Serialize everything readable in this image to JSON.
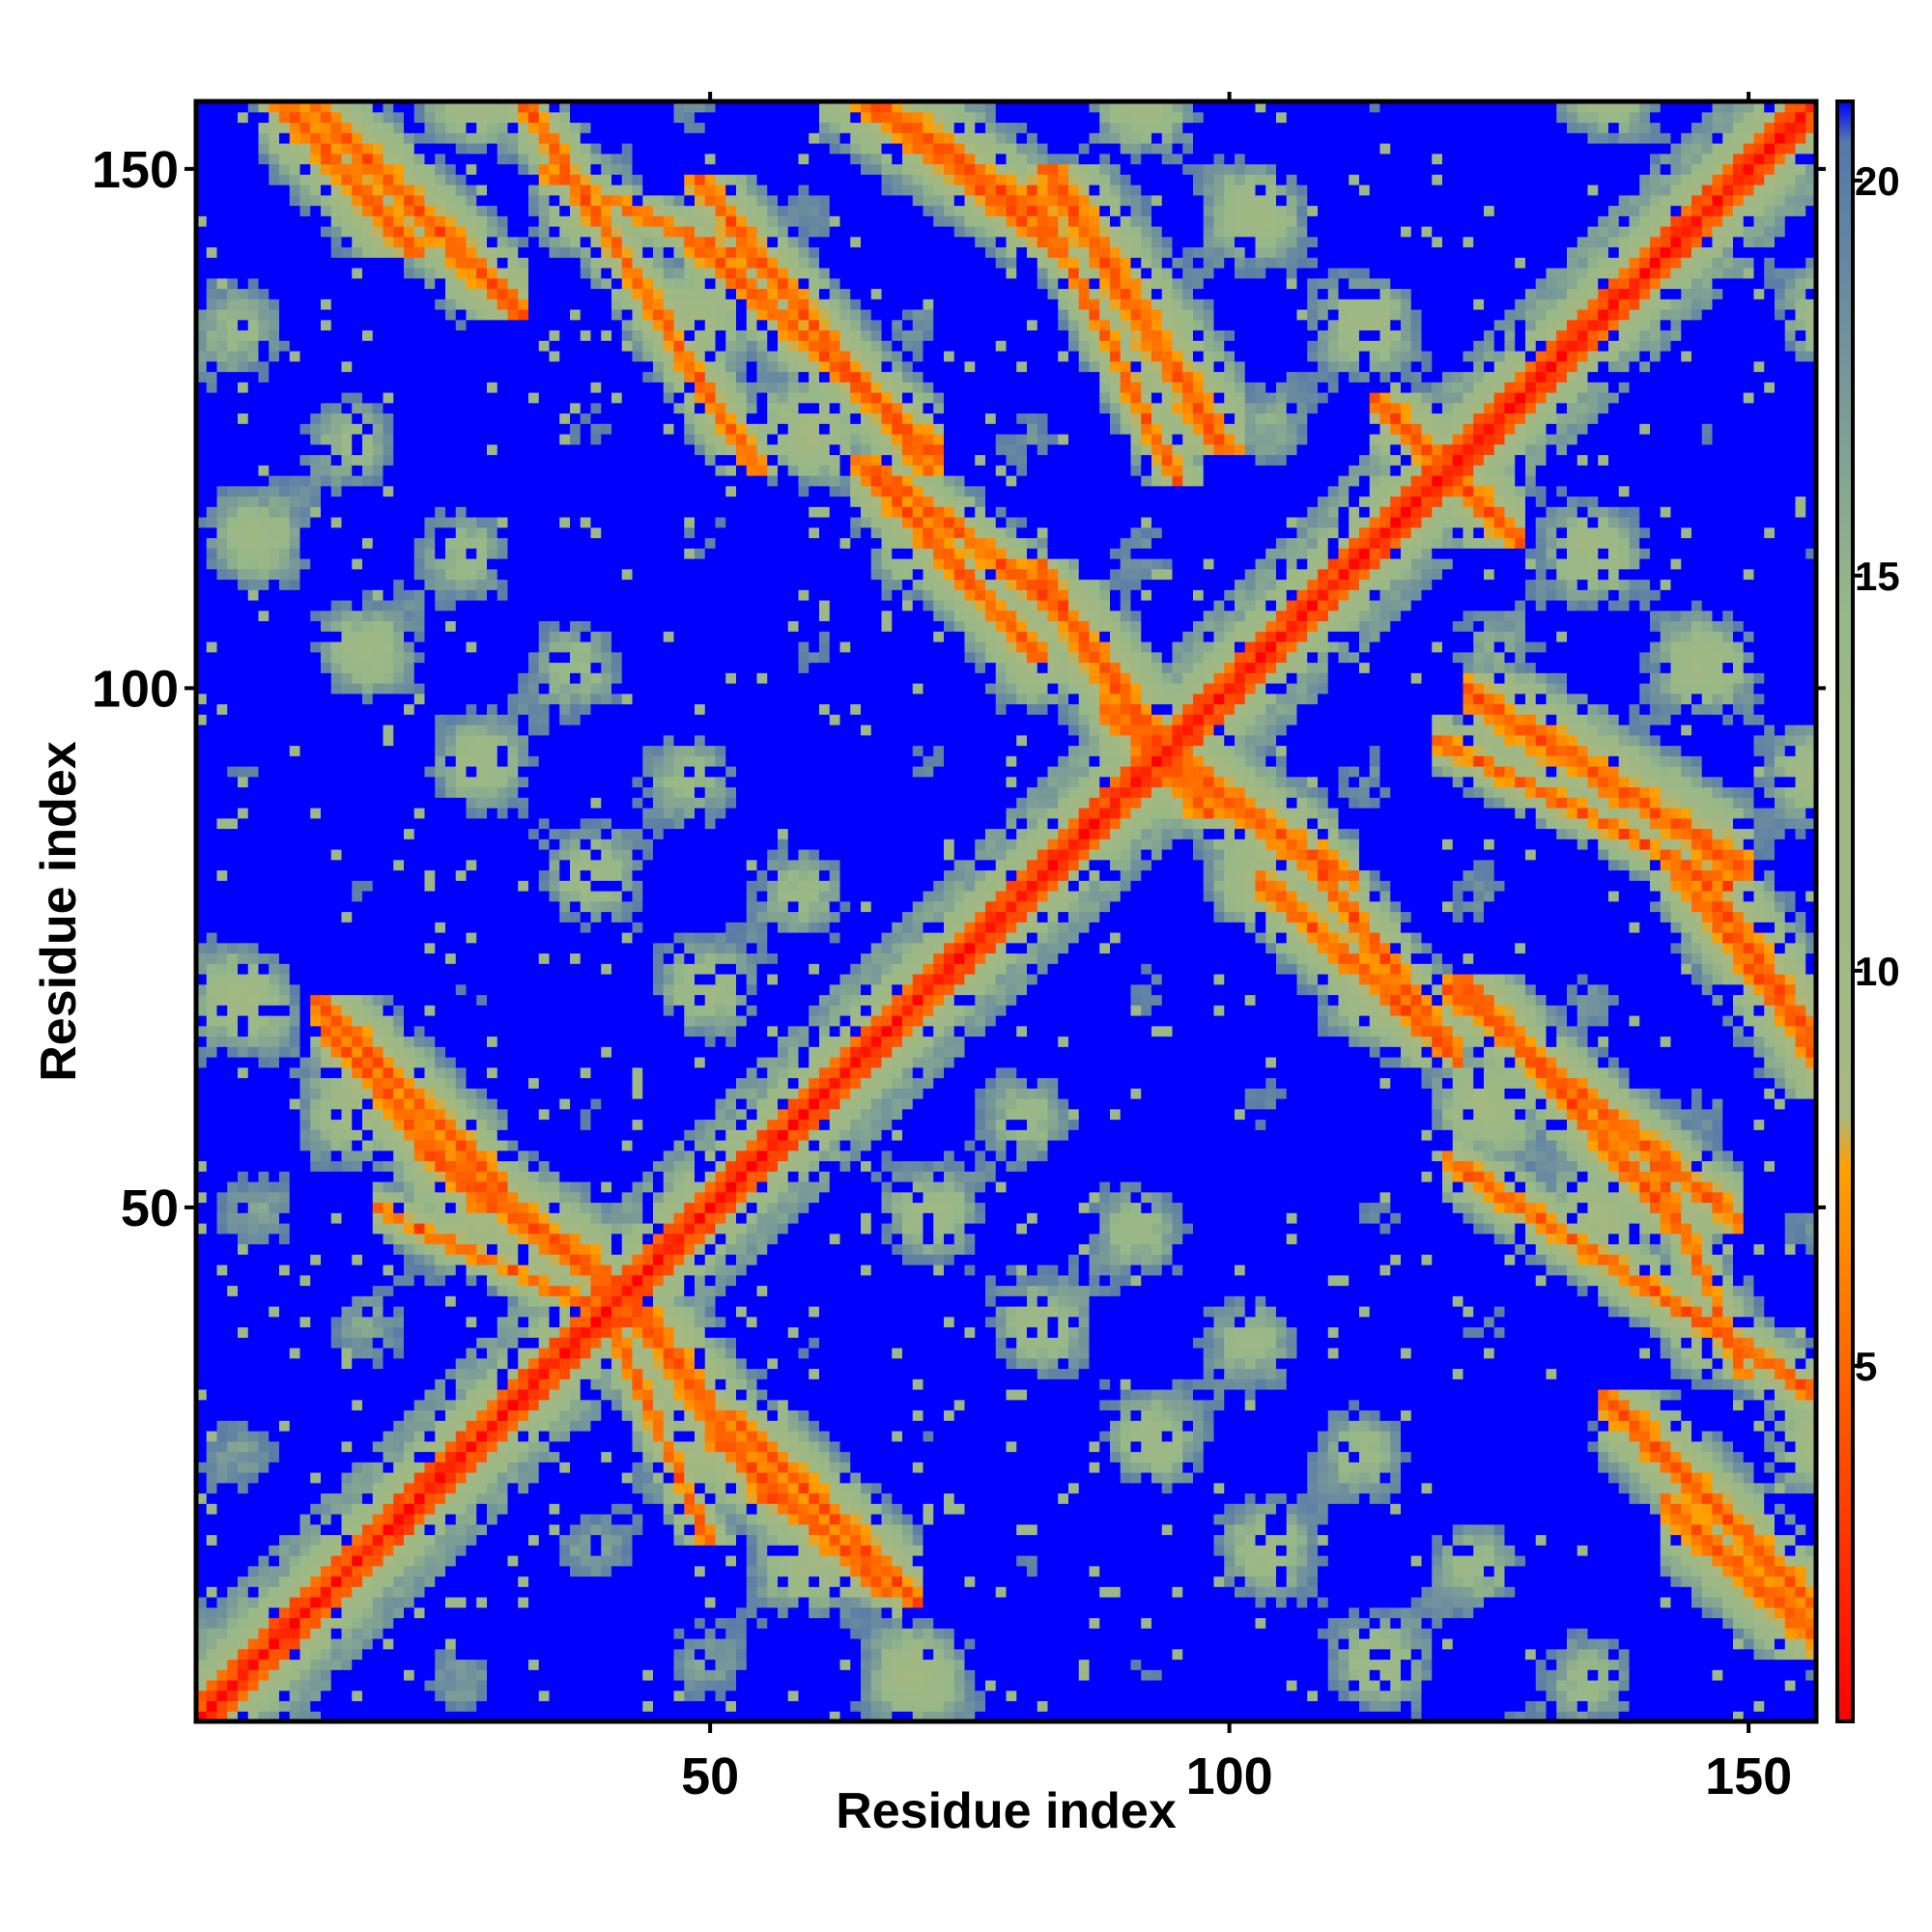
{
  "chart_data": {
    "type": "heatmap",
    "title": "",
    "xlabel": "Residue index",
    "ylabel": "Residue index",
    "xlim": [
      1,
      156
    ],
    "ylim": [
      1,
      156
    ],
    "x_ticks": [
      50,
      100,
      150
    ],
    "y_ticks": [
      50,
      100,
      150
    ],
    "colorbar": {
      "range": [
        0.5,
        21
      ],
      "ticks": [
        5,
        10,
        15,
        20
      ],
      "stops": [
        {
          "value": 0.5,
          "color": "#ff0000"
        },
        {
          "value": 4.0,
          "color": "#ff5000"
        },
        {
          "value": 7.5,
          "color": "#ffa000"
        },
        {
          "value": 8.2,
          "color": "#a8b880"
        },
        {
          "value": 14.5,
          "color": "#98b888"
        },
        {
          "value": 20.5,
          "color": "#5577aa"
        },
        {
          "value": 21,
          "color": "#0000ff"
        }
      ],
      "cutoff_color": "#0000ff",
      "cutoff_value": 20
    },
    "structure": {
      "n_residues": 156,
      "contact_bands": [
        {
          "i_range": [
            12,
            28
          ],
          "j_range": [
            140,
            156
          ],
          "orientation": "anti"
        },
        {
          "i_range": [
            33,
            52
          ],
          "j_range": [
            125,
            155
          ],
          "orientation": "anti"
        },
        {
          "i_range": [
            52,
            68
          ],
          "j_range": [
            125,
            145
          ],
          "orientation": "anti"
        },
        {
          "i_range": [
            65,
            78
          ],
          "j_range": [
            148,
            157
          ],
          "orientation": "anti"
        },
        {
          "i_range": [
            83,
            93
          ],
          "j_range": [
            124,
            144
          ],
          "orientation": "anti"
        },
        {
          "i_range": [
            68,
            78
          ],
          "j_range": [
            107,
            118
          ],
          "orientation": "anti"
        },
        {
          "i_range": [
            84,
            92
          ],
          "j_range": [
            95,
            108
          ],
          "orientation": "anti"
        },
        {
          "i_range": [
            92,
            106
          ],
          "j_range": [
            85,
            95
          ],
          "orientation": "anti"
        },
        {
          "i_range": [
            127,
            146
          ],
          "j_range": [
            85,
            97
          ],
          "orientation": "anti"
        },
        {
          "i_range": [
            112,
            118
          ],
          "j_range": [
            70,
            78
          ],
          "orientation": "anti"
        },
        {
          "i_range": [
            145,
            154
          ],
          "j_range": [
            68,
            80
          ],
          "orientation": "anti"
        },
        {
          "i_range": [
            126,
            140
          ],
          "j_range": [
            52,
            68
          ],
          "orientation": "anti"
        },
        {
          "i_range": [
            142,
            148
          ],
          "j_range": [
            38,
            52
          ],
          "orientation": "anti"
        },
        {
          "i_range": [
            16,
            26
          ],
          "j_range": [
            56,
            66
          ],
          "orientation": "anti"
        },
        {
          "i_range": [
            26,
            36
          ],
          "j_range": [
            46,
            53
          ],
          "orientation": "anti"
        },
        {
          "i_range": [
            54,
            63
          ],
          "j_range": [
            17,
            25
          ],
          "orientation": "anti"
        },
        {
          "i_range": [
            40,
            48
          ],
          "j_range": [
            22,
            40
          ],
          "orientation": "anti"
        },
        {
          "i_range": [
            118,
            124
          ],
          "j_range": [
            118,
            124
          ],
          "orientation": "anti"
        },
        {
          "i_range": [
            146,
            154
          ],
          "j_range": [
            11,
            18
          ],
          "orientation": "anti"
        }
      ]
    }
  }
}
